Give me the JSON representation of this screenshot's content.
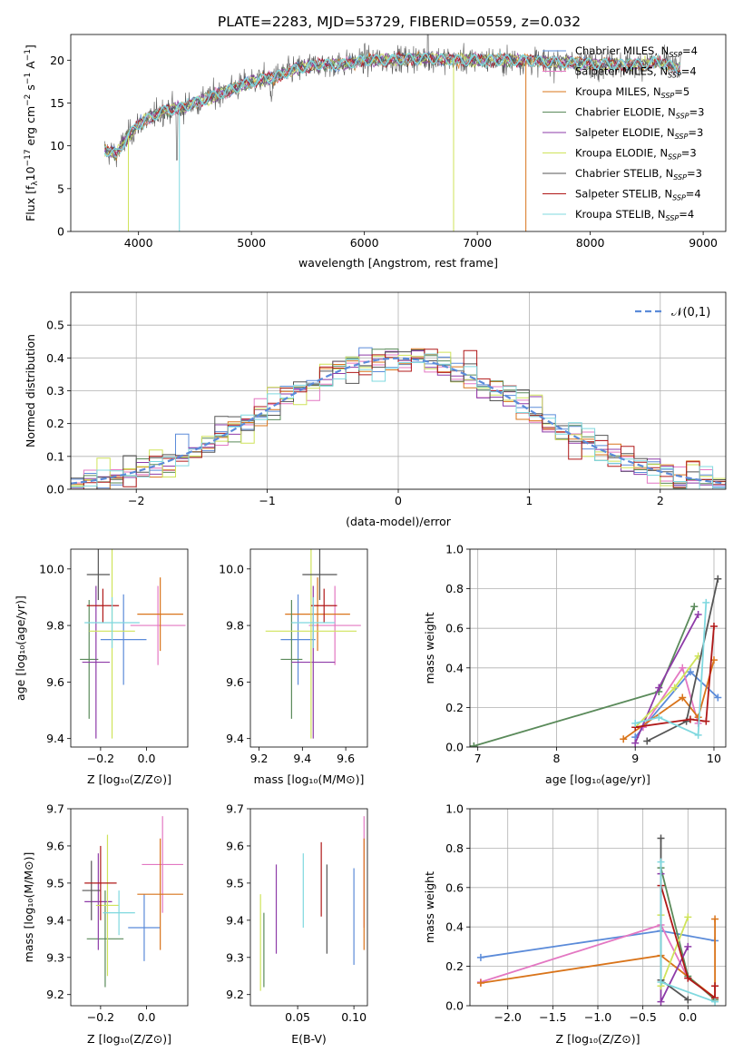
{
  "figure": {
    "title": "PLATE=2283, MJD=53729, FIBERID=0559, z=0.032"
  },
  "legend_entries": [
    {
      "label": "Chabrier MILES, N_SSP=4",
      "color": "#5b8bd9"
    },
    {
      "label": "Salpeter MILES, N_SSP=4",
      "color": "#e377c2"
    },
    {
      "label": "Kroupa MILES, N_SSP=5",
      "color": "#d9741a"
    },
    {
      "label": "Chabrier ELODIE, N_SSP=3",
      "color": "#5a8a5a"
    },
    {
      "label": "Salpeter ELODIE, N_SSP=3",
      "color": "#8e3ba8"
    },
    {
      "label": "Kroupa ELODIE, N_SSP=3",
      "color": "#cfe35a"
    },
    {
      "label": "Chabrier STELIB, N_SSP=3",
      "color": "#555555"
    },
    {
      "label": "Salpeter STELIB, N_SSP=4",
      "color": "#b01818"
    },
    {
      "label": "Kroupa STELIB, N_SSP=4",
      "color": "#7fd8df"
    }
  ],
  "chart_data": [
    {
      "id": "spectrum",
      "type": "line",
      "xlabel": "wavelength [Angstrom, rest frame]",
      "ylabel": "Flux [f_λ 10^-17 erg cm^-2 s^-1 A^-1]",
      "xlim": [
        3400,
        9200
      ],
      "ylim": [
        0,
        23
      ],
      "x_ticks": [
        4000,
        5000,
        6000,
        7000,
        8000,
        9000
      ],
      "y_ticks": [
        0,
        5,
        10,
        15,
        20
      ],
      "continuum_shape": {
        "x": [
          3700,
          3800,
          3900,
          4000,
          4200,
          4400,
          4600,
          4800,
          5000,
          5200,
          5400,
          5600,
          5800,
          6000,
          6200,
          6400,
          6600,
          6800,
          7000,
          7200,
          7400,
          7600,
          7800,
          8000,
          8200,
          8400,
          8600,
          8800
        ],
        "y": [
          9.5,
          9.0,
          11.0,
          12.5,
          14.0,
          14.5,
          15.5,
          16.5,
          17.5,
          18.0,
          19.0,
          19.5,
          19.5,
          20.0,
          20.0,
          20.2,
          20.2,
          20.0,
          20.0,
          20.0,
          20.0,
          19.8,
          19.7,
          19.6,
          19.5,
          19.5,
          19.8,
          19.0
        ]
      },
      "grid": false
    },
    {
      "id": "residual_hist",
      "type": "histogram",
      "xlabel": "(data-model)/error",
      "ylabel": "Normed distribution",
      "xlim": [
        -2.5,
        2.5
      ],
      "ylim": [
        0,
        0.6
      ],
      "x_ticks": [
        -2,
        -1,
        0,
        1,
        2
      ],
      "y_ticks": [
        0.0,
        0.1,
        0.2,
        0.3,
        0.4,
        0.5
      ],
      "bin_width": 0.1,
      "reference": {
        "label": "𝒩(0,1)",
        "style": "dashed",
        "color": "#5b8bd9"
      },
      "grid": true
    },
    {
      "id": "age_vs_Z",
      "type": "errorbar",
      "xlabel": "Z [log10(Z/Z⊙)]",
      "ylabel": "age [log10(age/yr)]",
      "xlim": [
        -0.33,
        0.18
      ],
      "ylim": [
        9.37,
        10.07
      ],
      "x_ticks": [
        -0.2,
        0.0
      ],
      "y_ticks": [
        9.4,
        9.6,
        9.8,
        10.0
      ],
      "points": [
        {
          "x": -0.1,
          "y": 9.75,
          "xerr": 0.1,
          "yerr": 0.16,
          "color": "#5b8bd9"
        },
        {
          "x": 0.05,
          "y": 9.8,
          "xerr": 0.12,
          "yerr": 0.14,
          "color": "#e377c2"
        },
        {
          "x": 0.06,
          "y": 9.84,
          "xerr": 0.1,
          "yerr": 0.13,
          "color": "#d9741a"
        },
        {
          "x": -0.25,
          "y": 9.68,
          "xerr": 0.04,
          "yerr": 0.21,
          "color": "#5a8a5a"
        },
        {
          "x": -0.22,
          "y": 9.67,
          "xerr": 0.06,
          "yerr": 0.27,
          "color": "#8e3ba8"
        },
        {
          "x": -0.15,
          "y": 9.78,
          "xerr": 0.1,
          "yerr": 0.38,
          "color": "#cfe35a"
        },
        {
          "x": -0.21,
          "y": 9.98,
          "xerr": 0.05,
          "yerr": 0.09,
          "color": "#555555"
        },
        {
          "x": -0.19,
          "y": 9.87,
          "xerr": 0.07,
          "yerr": 0.06,
          "color": "#b01818"
        },
        {
          "x": -0.15,
          "y": 9.81,
          "xerr": 0.12,
          "yerr": 0.09,
          "color": "#7fd8df"
        }
      ]
    },
    {
      "id": "age_vs_mass",
      "type": "errorbar",
      "xlabel": "mass [log10(M/M⊙)]",
      "ylabel": "",
      "xlim": [
        9.16,
        9.7
      ],
      "ylim": [
        9.37,
        10.07
      ],
      "x_ticks": [
        9.2,
        9.4,
        9.6
      ],
      "y_ticks": [
        9.4,
        9.6,
        9.8,
        10.0
      ],
      "points": [
        {
          "x": 9.38,
          "y": 9.75,
          "xerr": 0.08,
          "yerr": 0.16,
          "color": "#5b8bd9"
        },
        {
          "x": 9.55,
          "y": 9.8,
          "xerr": 0.12,
          "yerr": 0.14,
          "color": "#e377c2"
        },
        {
          "x": 9.47,
          "y": 9.84,
          "xerr": 0.15,
          "yerr": 0.13,
          "color": "#d9741a"
        },
        {
          "x": 9.35,
          "y": 9.68,
          "xerr": 0.05,
          "yerr": 0.21,
          "color": "#5a8a5a"
        },
        {
          "x": 9.45,
          "y": 9.67,
          "xerr": 0.1,
          "yerr": 0.27,
          "color": "#8e3ba8"
        },
        {
          "x": 9.44,
          "y": 9.78,
          "xerr": 0.21,
          "yerr": 0.38,
          "color": "#cfe35a"
        },
        {
          "x": 9.48,
          "y": 9.98,
          "xerr": 0.08,
          "yerr": 0.09,
          "color": "#555555"
        },
        {
          "x": 9.5,
          "y": 9.87,
          "xerr": 0.06,
          "yerr": 0.06,
          "color": "#b01818"
        },
        {
          "x": 9.45,
          "y": 9.81,
          "xerr": 0.1,
          "yerr": 0.09,
          "color": "#7fd8df"
        }
      ]
    },
    {
      "id": "weight_vs_age",
      "type": "line",
      "xlabel": "age [log10(age/yr)]",
      "ylabel": "mass weight",
      "xlim": [
        6.9,
        10.15
      ],
      "ylim": [
        0,
        1
      ],
      "x_ticks": [
        7,
        8,
        9,
        10
      ],
      "y_ticks": [
        0.0,
        0.2,
        0.4,
        0.6,
        0.8,
        1.0
      ],
      "grid": true,
      "series": [
        {
          "color": "#5b8bd9",
          "x": [
            9.0,
            9.7,
            10.05
          ],
          "y": [
            0.05,
            0.38,
            0.25
          ]
        },
        {
          "color": "#e377c2",
          "x": [
            9.1,
            9.6,
            9.8
          ],
          "y": [
            0.1,
            0.4,
            0.12
          ]
        },
        {
          "color": "#d9741a",
          "x": [
            8.85,
            9.6,
            9.8,
            10.0
          ],
          "y": [
            0.04,
            0.25,
            0.15,
            0.44
          ]
        },
        {
          "color": "#5a8a5a",
          "x": [
            6.95,
            9.3,
            9.75
          ],
          "y": [
            0.005,
            0.28,
            0.71
          ]
        },
        {
          "color": "#8e3ba8",
          "x": [
            9.0,
            9.3,
            9.8
          ],
          "y": [
            0.02,
            0.3,
            0.67
          ]
        },
        {
          "color": "#cfe35a",
          "x": [
            9.0,
            9.5,
            9.8
          ],
          "y": [
            0.1,
            0.3,
            0.46
          ]
        },
        {
          "color": "#555555",
          "x": [
            9.15,
            9.65,
            10.05
          ],
          "y": [
            0.03,
            0.13,
            0.85
          ]
        },
        {
          "color": "#b01818",
          "x": [
            9.0,
            9.7,
            9.9,
            10.0
          ],
          "y": [
            0.1,
            0.14,
            0.13,
            0.61
          ]
        },
        {
          "color": "#7fd8df",
          "x": [
            9.0,
            9.3,
            9.8,
            9.9
          ],
          "y": [
            0.12,
            0.15,
            0.06,
            0.73
          ]
        }
      ]
    },
    {
      "id": "mass_vs_Z",
      "type": "errorbar",
      "xlabel": "Z [log10(Z/Z⊙)]",
      "ylabel": "mass [log10(M/M⊙)]",
      "xlim": [
        -0.33,
        0.18
      ],
      "ylim": [
        9.17,
        9.7
      ],
      "x_ticks": [
        -0.2,
        0.0
      ],
      "y_ticks": [
        9.2,
        9.3,
        9.4,
        9.5,
        9.6,
        9.7
      ],
      "points": [
        {
          "x": -0.01,
          "y": 9.38,
          "xerr": 0.07,
          "yerr": 0.09,
          "color": "#5b8bd9"
        },
        {
          "x": 0.07,
          "y": 9.55,
          "xerr": 0.09,
          "yerr": 0.13,
          "color": "#e377c2"
        },
        {
          "x": 0.06,
          "y": 9.47,
          "xerr": 0.1,
          "yerr": 0.15,
          "color": "#d9741a"
        },
        {
          "x": -0.18,
          "y": 9.35,
          "xerr": 0.08,
          "yerr": 0.13,
          "color": "#5a8a5a"
        },
        {
          "x": -0.21,
          "y": 9.45,
          "xerr": 0.06,
          "yerr": 0.13,
          "color": "#8e3ba8"
        },
        {
          "x": -0.17,
          "y": 9.44,
          "xerr": 0.05,
          "yerr": 0.19,
          "color": "#cfe35a"
        },
        {
          "x": -0.24,
          "y": 9.48,
          "xerr": 0.04,
          "yerr": 0.08,
          "color": "#555555"
        },
        {
          "x": -0.2,
          "y": 9.5,
          "xerr": 0.07,
          "yerr": 0.1,
          "color": "#b01818"
        },
        {
          "x": -0.12,
          "y": 9.42,
          "xerr": 0.07,
          "yerr": 0.06,
          "color": "#7fd8df"
        }
      ]
    },
    {
      "id": "mass_vs_ebv",
      "type": "errorbar",
      "xlabel": "E(B-V)",
      "ylabel": "",
      "xlim": [
        0.008,
        0.112
      ],
      "ylim": [
        9.17,
        9.7
      ],
      "x_ticks": [
        0.05,
        0.1
      ],
      "y_ticks": [
        9.2,
        9.3,
        9.4,
        9.5,
        9.6,
        9.7
      ],
      "points": [
        {
          "x": 0.1,
          "y": 9.41,
          "yerr": 0.13,
          "color": "#5b8bd9"
        },
        {
          "x": 0.109,
          "y": 9.53,
          "yerr": 0.15,
          "color": "#e377c2"
        },
        {
          "x": 0.109,
          "y": 9.47,
          "yerr": 0.15,
          "color": "#d9741a"
        },
        {
          "x": 0.02,
          "y": 9.32,
          "yerr": 0.1,
          "color": "#5a8a5a"
        },
        {
          "x": 0.031,
          "y": 9.43,
          "yerr": 0.12,
          "color": "#8e3ba8"
        },
        {
          "x": 0.017,
          "y": 9.34,
          "yerr": 0.13,
          "color": "#cfe35a"
        },
        {
          "x": 0.076,
          "y": 9.43,
          "yerr": 0.12,
          "color": "#555555"
        },
        {
          "x": 0.071,
          "y": 9.51,
          "yerr": 0.1,
          "color": "#b01818"
        },
        {
          "x": 0.055,
          "y": 9.48,
          "yerr": 0.1,
          "color": "#7fd8df"
        }
      ]
    },
    {
      "id": "weight_vs_Z",
      "type": "line",
      "xlabel": "Z [log10(Z/Z⊙)]",
      "ylabel": "mass weight",
      "xlim": [
        -2.42,
        0.42
      ],
      "ylim": [
        0,
        1
      ],
      "x_ticks": [
        -2.0,
        -1.5,
        -1.0,
        -0.5,
        0.0
      ],
      "y_ticks": [
        0.0,
        0.2,
        0.4,
        0.6,
        0.8,
        1.0
      ],
      "grid": true,
      "series": [
        {
          "color": "#5b8bd9",
          "x": [
            -2.3,
            -0.3,
            0.3
          ],
          "y": [
            0.245,
            0.38,
            0.33
          ]
        },
        {
          "color": "#e377c2",
          "x": [
            -2.3,
            -0.3,
            0.0
          ],
          "y": [
            0.12,
            0.41,
            0.14
          ]
        },
        {
          "color": "#d9741a",
          "x": [
            -2.3,
            -0.3,
            0.3,
            0.3
          ],
          "y": [
            0.115,
            0.255,
            0.04,
            0.44
          ]
        },
        {
          "color": "#5a8a5a",
          "x": [
            -0.3,
            0.0,
            0.3
          ],
          "y": [
            0.7,
            0.15,
            0.03
          ]
        },
        {
          "color": "#8e3ba8",
          "x": [
            -0.3,
            -0.3,
            0.0
          ],
          "y": [
            0.67,
            0.02,
            0.3
          ]
        },
        {
          "color": "#cfe35a",
          "x": [
            -0.3,
            -0.3,
            0.0
          ],
          "y": [
            0.46,
            0.1,
            0.45
          ]
        },
        {
          "color": "#555555",
          "x": [
            -0.3,
            -0.3,
            0.0
          ],
          "y": [
            0.85,
            0.13,
            0.03
          ]
        },
        {
          "color": "#b01818",
          "x": [
            -0.3,
            0.0,
            0.3,
            0.3
          ],
          "y": [
            0.61,
            0.14,
            0.04,
            0.1
          ]
        },
        {
          "color": "#7fd8df",
          "x": [
            -0.3,
            -0.3,
            0.3
          ],
          "y": [
            0.73,
            0.12,
            0.02
          ]
        }
      ]
    }
  ]
}
